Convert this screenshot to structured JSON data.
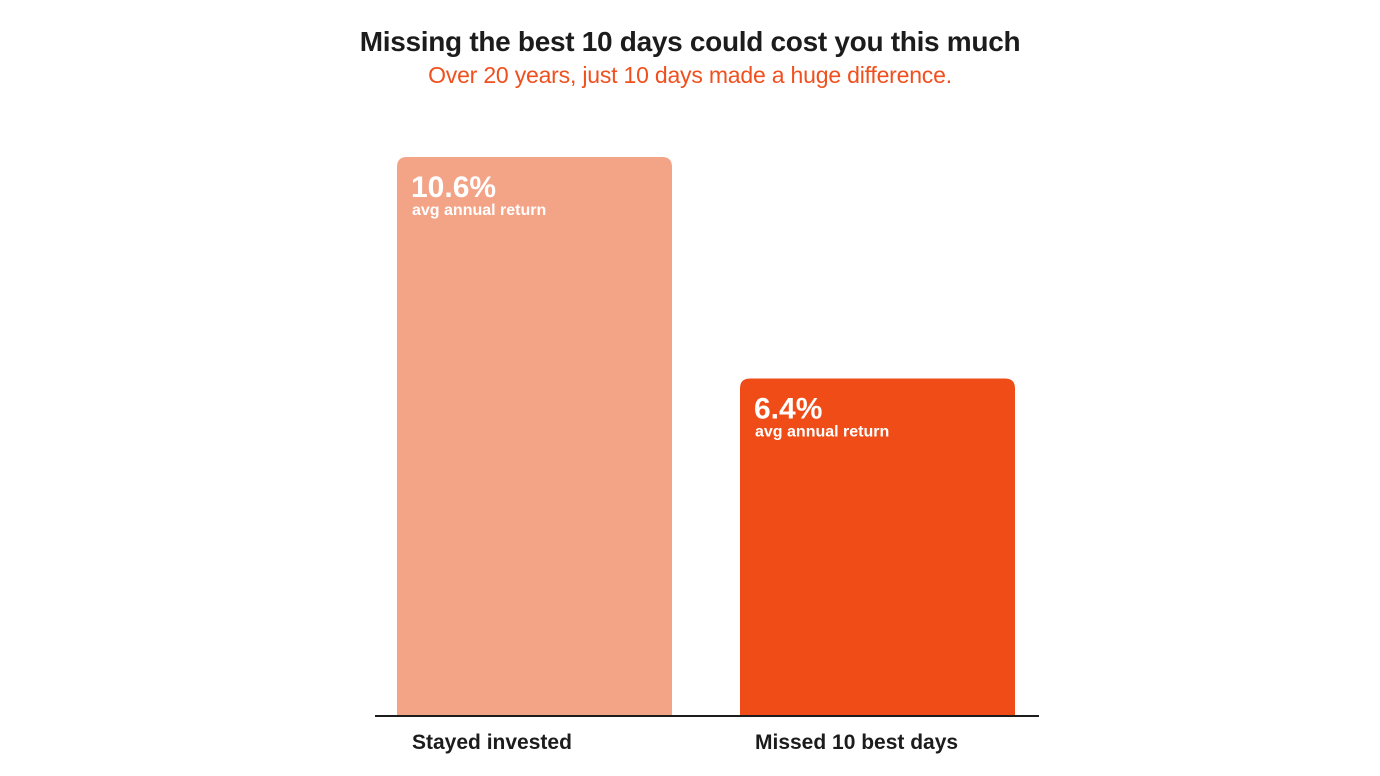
{
  "header": {
    "title": "Missing the best 10 days could cost you this much",
    "subtitle": "Over 20 years, just 10 days made a huge difference."
  },
  "colors": {
    "title": "#1c1c1c",
    "subtitle": "#f0501e",
    "axis": "#1c1c1c"
  },
  "chart_data": {
    "type": "bar",
    "title": "Missing the best 10 days could cost you this much",
    "subtitle": "Over 20 years, just 10 days made a huge difference.",
    "categories": [
      "Stayed invested",
      "Missed 10 best days"
    ],
    "values": [
      10.6,
      6.4
    ],
    "value_labels": [
      "10.6%",
      "6.4%"
    ],
    "value_sublabel": "avg annual return",
    "bar_colors": [
      "#f3a386",
      "#f04c17"
    ],
    "unit": "%",
    "ylim": [
      0,
      10.6
    ],
    "grid": false,
    "xlabel": "",
    "ylabel": ""
  }
}
